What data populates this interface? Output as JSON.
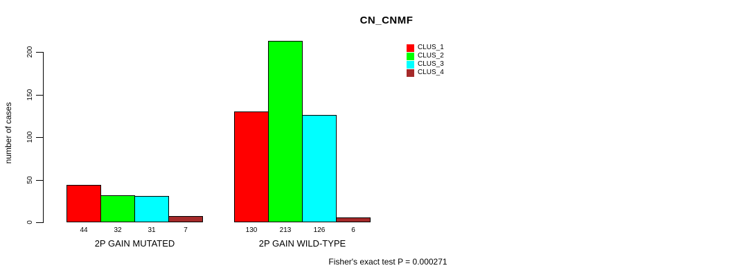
{
  "chart_data": {
    "type": "bar",
    "title": "CN_CNMF",
    "ylabel": "number of cases",
    "xlabel": "",
    "categories": [
      "2P GAIN MUTATED",
      "2P GAIN WILD-TYPE"
    ],
    "series": [
      {
        "name": "CLUS_1",
        "color": "#FF0000",
        "values": [
          44,
          130
        ]
      },
      {
        "name": "CLUS_2",
        "color": "#00FF00",
        "values": [
          32,
          213
        ]
      },
      {
        "name": "CLUS_3",
        "color": "#00FFFF",
        "values": [
          31,
          126
        ]
      },
      {
        "name": "CLUS_4",
        "color": "#A52A2A",
        "values": [
          7,
          6
        ]
      }
    ],
    "yticks": [
      0,
      50,
      100,
      150,
      200
    ],
    "ylim": [
      0,
      220
    ],
    "grid": false,
    "bar_value_labels_shown": true,
    "legend_position": "top-right",
    "annotation": "Fisher's exact test P = 0.000271"
  }
}
